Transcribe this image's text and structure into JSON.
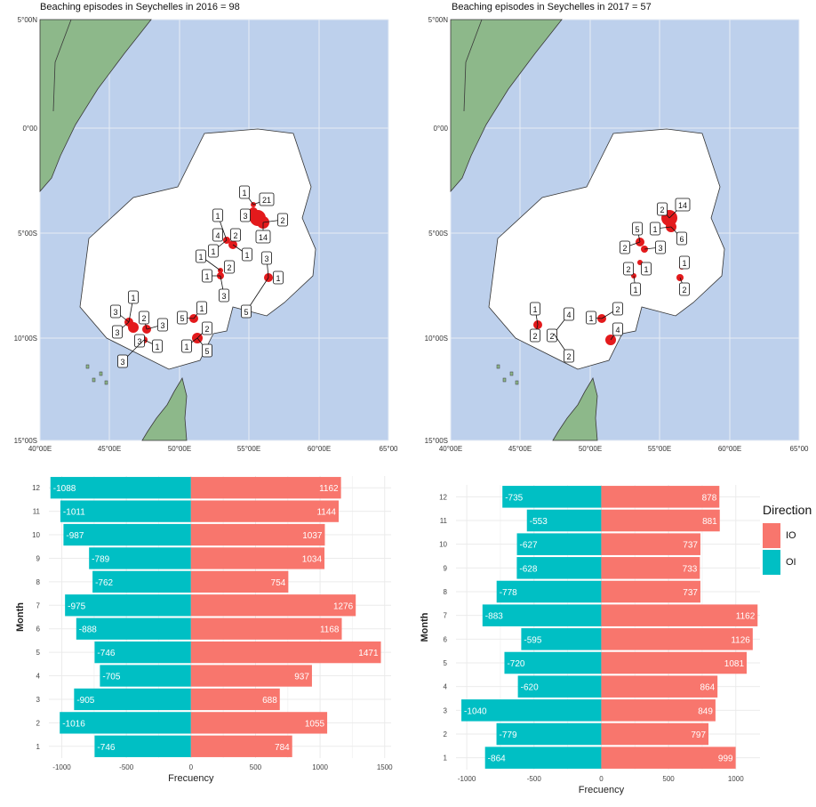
{
  "maps": [
    {
      "title": "Beaching episodes in Seychelles in 2016 = 98",
      "lat_labels": [
        "5°00N",
        "0°00",
        "5°00S",
        "10°00S",
        "15°00S"
      ],
      "lon_labels": [
        "40°00E",
        "45°00E",
        "50°00E",
        "55°00E",
        "60°00E",
        "65°00"
      ],
      "labels": [
        "1",
        "21",
        "1",
        "3",
        "2",
        "4",
        "2",
        "14",
        "1",
        "1",
        "3",
        "1",
        "2",
        "1",
        "1",
        "3",
        "5",
        "1",
        "1",
        "5",
        "3",
        "2",
        "3",
        "2",
        "3",
        "3",
        "1",
        "1",
        "5",
        "3"
      ]
    },
    {
      "title": "Beaching episodes in Seychelles in 2017 = 57",
      "lat_labels": [
        "5°00N",
        "0°00",
        "5°00S",
        "10°00S",
        "15°00S"
      ],
      "lon_labels": [
        "40°00E",
        "45°00E",
        "50°00E",
        "55°00E",
        "60°00E",
        "65°00"
      ],
      "labels": [
        "2",
        "14",
        "6",
        "5",
        "1",
        "2",
        "3",
        "2",
        "1",
        "1",
        "1",
        "2",
        "1",
        "4",
        "1",
        "2",
        "2",
        "2",
        "4"
      ]
    }
  ],
  "chart_data": [
    {
      "type": "bar",
      "orientation": "horizontal",
      "categories": [
        "1",
        "2",
        "3",
        "4",
        "5",
        "6",
        "7",
        "8",
        "9",
        "10",
        "11",
        "12"
      ],
      "series": [
        {
          "name": "IO",
          "values": [
            784,
            1055,
            688,
            937,
            1471,
            1168,
            1276,
            754,
            1034,
            1037,
            1144,
            1162
          ]
        },
        {
          "name": "OI",
          "values": [
            -746,
            -1016,
            -905,
            -705,
            -746,
            -888,
            -975,
            -762,
            -789,
            -987,
            -1011,
            -1088
          ]
        }
      ],
      "xlabel": "Frecuency",
      "ylabel": "Month",
      "xlim": [
        -1100,
        1550
      ],
      "xticks": [
        -1000,
        -500,
        0,
        500,
        1000,
        1500
      ],
      "xtick_labels": [
        "-1000",
        "-500",
        "0",
        "500",
        "1000",
        "1500"
      ],
      "grid": true
    },
    {
      "type": "bar",
      "orientation": "horizontal",
      "categories": [
        "1",
        "2",
        "3",
        "4",
        "5",
        "6",
        "7",
        "8",
        "9",
        "10",
        "11",
        "12"
      ],
      "series": [
        {
          "name": "IO",
          "values": [
            999,
            797,
            849,
            864,
            1081,
            1126,
            1162,
            737,
            733,
            737,
            881,
            878
          ]
        },
        {
          "name": "OI",
          "values": [
            -864,
            -779,
            -1040,
            -620,
            -720,
            -595,
            -883,
            -778,
            -628,
            -627,
            -553,
            -735
          ]
        }
      ],
      "xlabel": "Frecuency",
      "ylabel": "Month",
      "xlim": [
        -1080,
        1180
      ],
      "xticks": [
        -1000,
        -500,
        0,
        500,
        1000
      ],
      "xtick_labels": [
        "-1000",
        "-500",
        "0",
        "500",
        "1000"
      ],
      "grid": true,
      "legend": {
        "title": "Direction",
        "position": "right",
        "entries": [
          "IO",
          "OI"
        ]
      }
    }
  ],
  "colors": {
    "io": "#F8766D",
    "oi": "#00BFC4",
    "ocean": "#BDD0EC",
    "land": "#8DB88A",
    "eez": "#FFFFFF",
    "point": "#E31A1C"
  }
}
